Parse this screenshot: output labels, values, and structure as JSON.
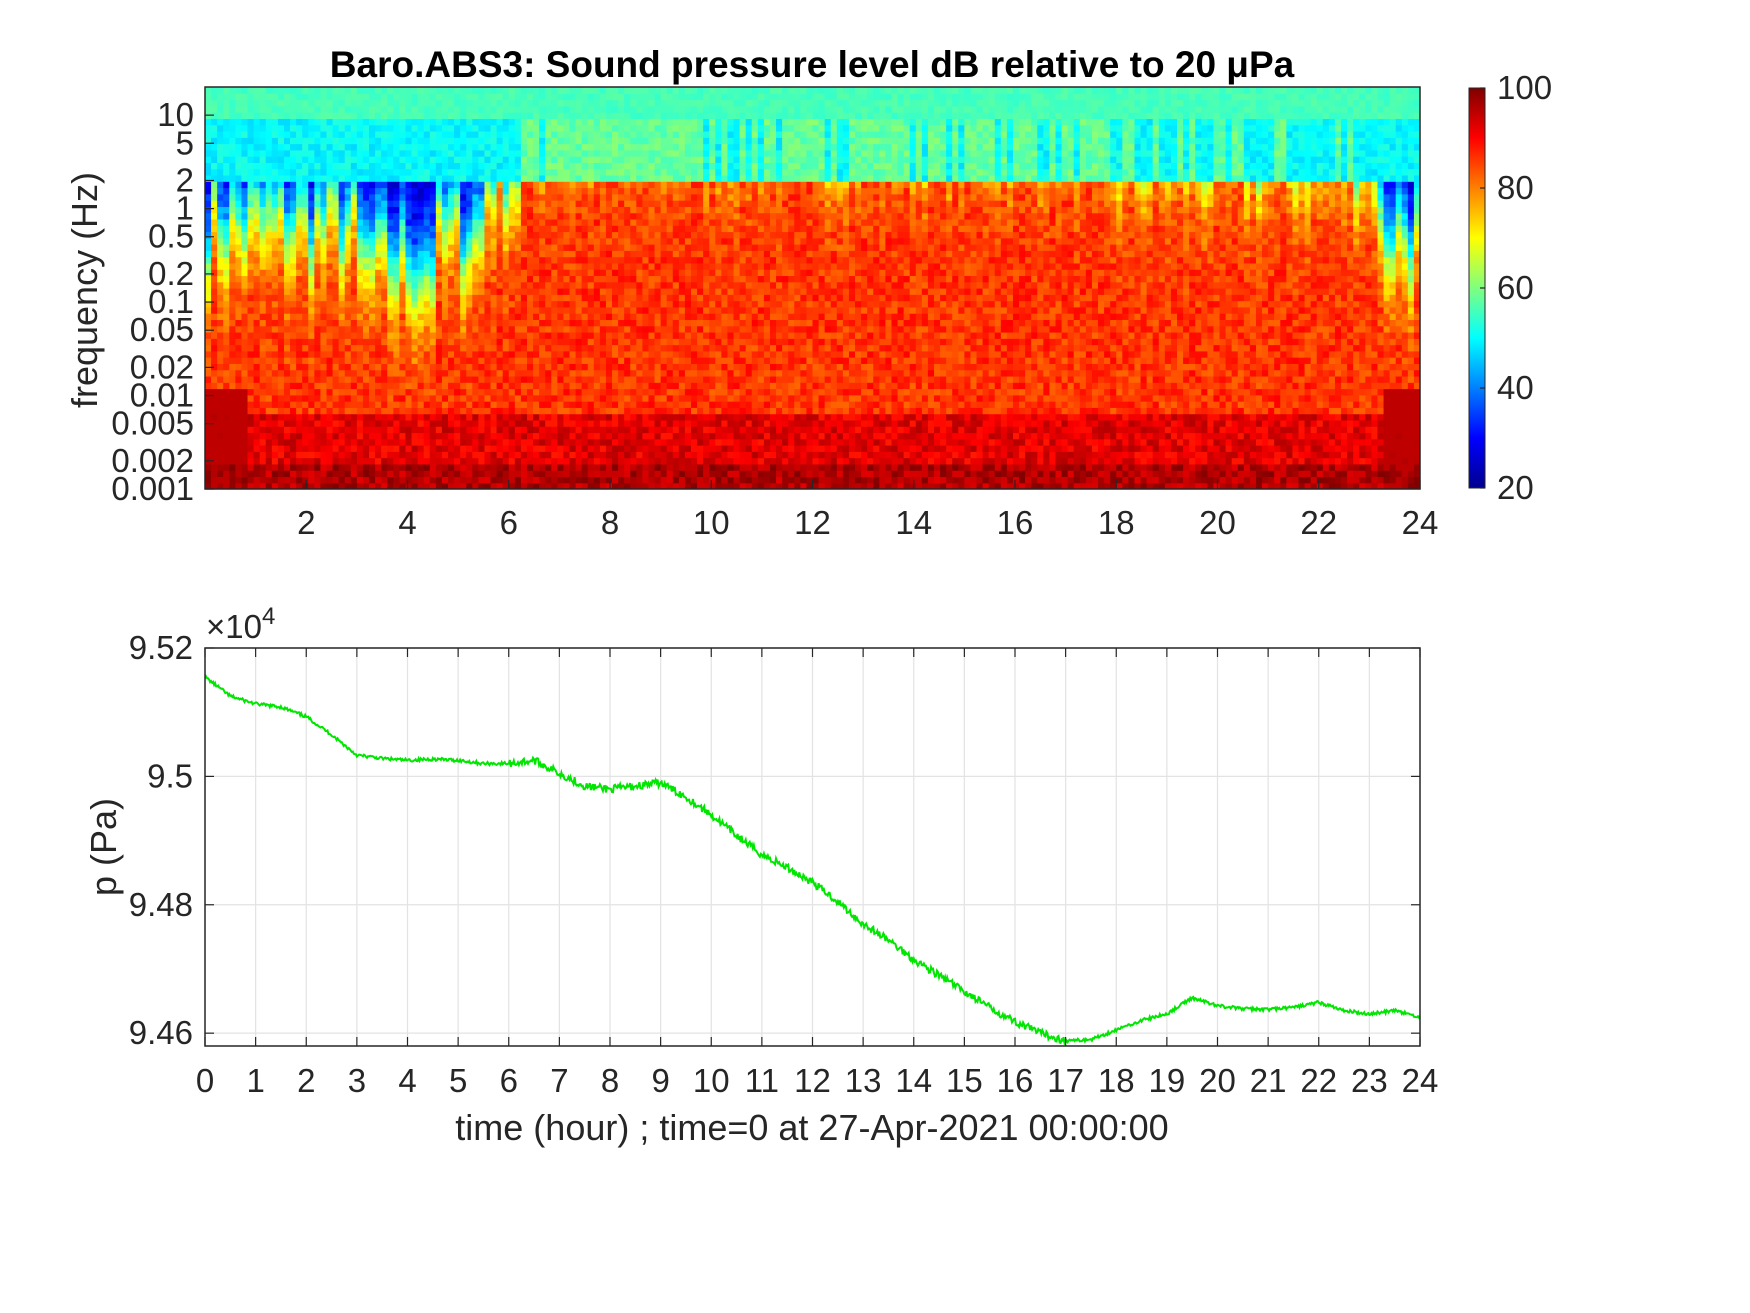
{
  "chart_data": [
    {
      "type": "heatmap",
      "title": "Baro.ABS3: Sound pressure level dB relative to 20 μPa",
      "ylabel": "frequency (Hz)",
      "xlabel": "",
      "y_scale": "log",
      "xlim": [
        0,
        24
      ],
      "ylim": [
        0.001,
        20
      ],
      "x_ticks": [
        2,
        4,
        6,
        8,
        10,
        12,
        14,
        16,
        18,
        20,
        22,
        24
      ],
      "y_ticks": [
        {
          "value": 0.001,
          "label": "0.001"
        },
        {
          "value": 0.002,
          "label": "0.002"
        },
        {
          "value": 0.005,
          "label": "0.005"
        },
        {
          "value": 0.01,
          "label": "0.01"
        },
        {
          "value": 0.02,
          "label": "0.02"
        },
        {
          "value": 0.05,
          "label": "0.05"
        },
        {
          "value": 0.1,
          "label": "0.1"
        },
        {
          "value": 0.2,
          "label": "0.2"
        },
        {
          "value": 0.5,
          "label": "0.5"
        },
        {
          "value": 1,
          "label": "1"
        },
        {
          "value": 2,
          "label": "2"
        },
        {
          "value": 5,
          "label": "5"
        },
        {
          "value": 10,
          "label": "10"
        }
      ],
      "colormap": "jet",
      "colorbar": {
        "min": 20,
        "max": 100,
        "ticks": [
          20,
          40,
          60,
          80,
          100
        ]
      },
      "grid": false
    },
    {
      "type": "line",
      "xlabel": "time (hour) ; time=0 at 27-Apr-2021 00:00:00",
      "ylabel": "p (Pa)",
      "y_exponent_label": "×10",
      "y_exponent": "4",
      "xlim": [
        0,
        24
      ],
      "ylim": [
        9.458,
        9.52
      ],
      "x_ticks": [
        0,
        1,
        2,
        3,
        4,
        5,
        6,
        7,
        8,
        9,
        10,
        11,
        12,
        13,
        14,
        15,
        16,
        17,
        18,
        19,
        20,
        21,
        22,
        23,
        24
      ],
      "y_ticks": [
        {
          "value": 9.46,
          "label": "9.46"
        },
        {
          "value": 9.48,
          "label": "9.48"
        },
        {
          "value": 9.5,
          "label": "9.5"
        },
        {
          "value": 9.52,
          "label": "9.52"
        }
      ],
      "grid": true,
      "series": [
        {
          "color": "#00e600",
          "x": [
            0,
            0.5,
            1,
            1.5,
            2,
            2.5,
            3,
            3.5,
            4,
            4.5,
            5,
            5.5,
            6,
            6.5,
            7,
            7.5,
            8,
            8.5,
            9,
            9.5,
            10,
            10.5,
            11,
            11.5,
            12,
            12.5,
            13,
            13.5,
            14,
            14.5,
            15,
            15.5,
            16,
            16.5,
            17,
            17.5,
            18,
            18.5,
            19,
            19.5,
            20,
            20.5,
            21,
            21.5,
            22,
            22.5,
            23,
            23.5,
            24
          ],
          "y": [
            9.5155,
            9.5125,
            9.5113,
            9.5108,
            9.5093,
            9.5065,
            9.5033,
            9.5028,
            9.5025,
            9.5027,
            9.5025,
            9.502,
            9.502,
            9.5025,
            9.5005,
            9.4985,
            9.498,
            9.4985,
            9.499,
            9.4968,
            9.494,
            9.4908,
            9.4878,
            9.4858,
            9.4835,
            9.4805,
            9.477,
            9.4745,
            9.4715,
            9.469,
            9.4665,
            9.464,
            9.4618,
            9.46,
            9.4588,
            9.459,
            9.4605,
            9.462,
            9.463,
            9.4655,
            9.4643,
            9.4638,
            9.4637,
            9.464,
            9.4648,
            9.4635,
            9.463,
            9.4635,
            9.4625
          ]
        }
      ]
    }
  ]
}
